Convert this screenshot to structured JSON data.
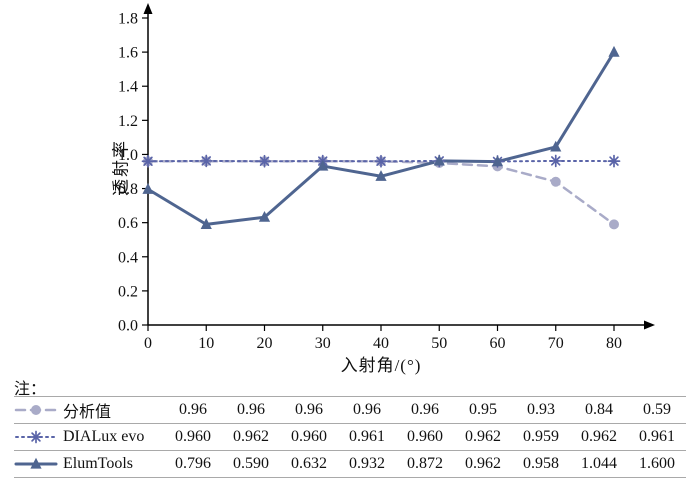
{
  "chart_data": {
    "type": "line",
    "title": "",
    "xlabel": "入射角/(°)",
    "ylabel": "透射率",
    "x": [
      0,
      10,
      20,
      30,
      40,
      50,
      60,
      70,
      80
    ],
    "xlim": [
      0,
      80
    ],
    "ylim": [
      0.0,
      1.8
    ],
    "ytick_step": 0.2,
    "xtick_step": 10,
    "grid": false,
    "legend_position": "table-below",
    "series": [
      {
        "name": "分析值",
        "values": [
          0.96,
          0.96,
          0.96,
          0.96,
          0.96,
          0.95,
          0.93,
          0.84,
          0.59
        ],
        "color": "#a9abc8",
        "line_style": "dashed",
        "line_width": 2.5,
        "marker": "circle"
      },
      {
        "name": "DIALux evo",
        "values": [
          0.96,
          0.962,
          0.96,
          0.961,
          0.96,
          0.962,
          0.959,
          0.962,
          0.961
        ],
        "color": "#5a64a8",
        "line_style": "dotted",
        "line_width": 2,
        "marker": "asterisk"
      },
      {
        "name": "ElumTools",
        "values": [
          0.796,
          0.59,
          0.632,
          0.932,
          0.872,
          0.962,
          0.958,
          1.044,
          1.6
        ],
        "color": "#4f6590",
        "line_style": "solid",
        "line_width": 3,
        "marker": "triangle"
      }
    ]
  },
  "note_label": "注：",
  "table": {
    "rows": [
      {
        "legend": "分析值",
        "values": [
          "0.96",
          "0.96",
          "0.96",
          "0.96",
          "0.96",
          "0.95",
          "0.93",
          "0.84",
          "0.59"
        ]
      },
      {
        "legend": "DIALux evo",
        "values": [
          "0.960",
          "0.962",
          "0.960",
          "0.961",
          "0.960",
          "0.962",
          "0.959",
          "0.962",
          "0.961"
        ]
      },
      {
        "legend": "ElumTools",
        "values": [
          "0.796",
          "0.590",
          "0.632",
          "0.932",
          "0.872",
          "0.962",
          "0.958",
          "1.044",
          "1.600"
        ]
      }
    ]
  }
}
